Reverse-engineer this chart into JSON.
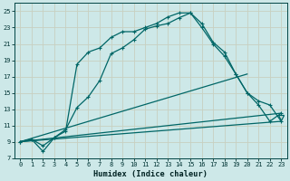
{
  "xlabel": "Humidex (Indice chaleur)",
  "bg_color": "#cde8e8",
  "grid_color": "#b8d8d8",
  "line_color": "#006666",
  "xlim": [
    -0.5,
    23.5
  ],
  "ylim": [
    7,
    26
  ],
  "yticks": [
    7,
    9,
    11,
    13,
    15,
    17,
    19,
    21,
    23,
    25
  ],
  "xticks": [
    0,
    1,
    2,
    3,
    4,
    5,
    6,
    7,
    8,
    9,
    10,
    11,
    12,
    13,
    14,
    15,
    16,
    17,
    18,
    19,
    20,
    21,
    22,
    23
  ],
  "series1_x": [
    0,
    1,
    2,
    3,
    4,
    5,
    6,
    7,
    8,
    9,
    10,
    11,
    12,
    13,
    14,
    15,
    16,
    17,
    18,
    19,
    20,
    21,
    22,
    23
  ],
  "series1_y": [
    9.0,
    9.3,
    8.5,
    9.5,
    10.5,
    13.2,
    14.5,
    16.5,
    19.8,
    20.5,
    21.5,
    22.8,
    23.2,
    23.5,
    24.2,
    24.8,
    23.5,
    21.2,
    20.0,
    17.3,
    15.0,
    13.5,
    11.5,
    12.5
  ],
  "series2_x": [
    0,
    1,
    2,
    3,
    4,
    5,
    6,
    7,
    8,
    9,
    10,
    11,
    12,
    13,
    14,
    15,
    16,
    17,
    18,
    19,
    20,
    21,
    22,
    23
  ],
  "series2_y": [
    9.0,
    9.3,
    7.8,
    9.5,
    10.3,
    18.5,
    20.0,
    20.5,
    21.8,
    22.5,
    22.5,
    23.0,
    23.5,
    24.3,
    24.8,
    24.8,
    23.0,
    21.0,
    19.5,
    17.3,
    15.0,
    14.0,
    13.5,
    11.5
  ],
  "series3_x": [
    0,
    20
  ],
  "series3_y": [
    9.0,
    17.3
  ],
  "series4_x": [
    0,
    23
  ],
  "series4_y": [
    9.0,
    12.5
  ],
  "series5_x": [
    0,
    23
  ],
  "series5_y": [
    9.0,
    11.5
  ],
  "tri_x": 23,
  "tri_y": 12.0
}
